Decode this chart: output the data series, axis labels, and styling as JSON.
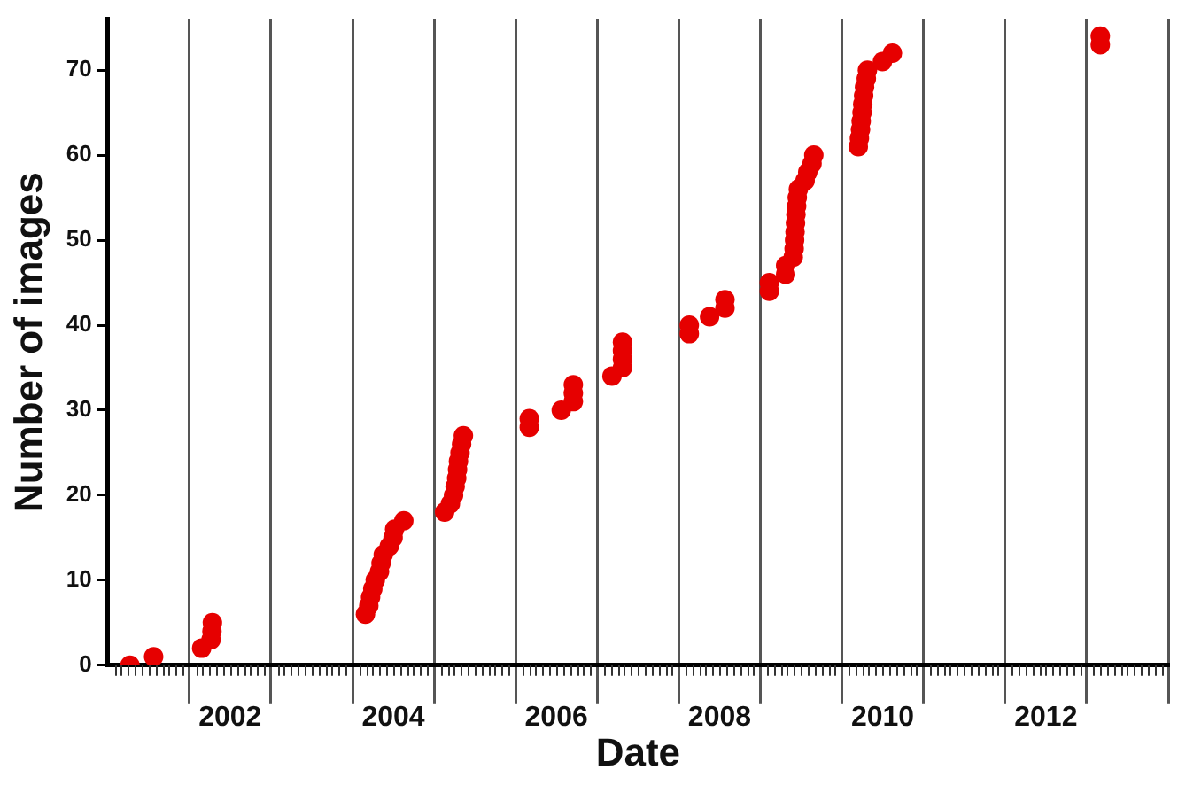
{
  "chart_data": {
    "type": "scatter",
    "xlabel": "Date",
    "ylabel": "Number of images",
    "x": [
      "2001-04-10",
      "2001-07-25",
      "2002-02-25",
      "2002-04-08",
      "2002-04-12",
      "2002-04-14",
      "2004-02-28",
      "2004-03-14",
      "2004-03-22",
      "2004-04-01",
      "2004-04-12",
      "2004-05-01",
      "2004-05-08",
      "2004-05-18",
      "2004-06-14",
      "2004-07-01",
      "2004-07-08",
      "2004-08-18",
      "2005-02-17",
      "2005-03-15",
      "2005-03-29",
      "2005-04-05",
      "2005-04-12",
      "2005-04-16",
      "2005-04-20",
      "2005-04-27",
      "2005-05-04",
      "2005-05-12",
      "2006-03-03",
      "2006-03-03",
      "2006-07-24",
      "2006-09-16",
      "2006-09-16",
      "2006-09-16",
      "2007-03-08",
      "2007-04-24",
      "2007-04-24",
      "2007-04-24",
      "2007-04-24",
      "2008-02-17",
      "2008-02-17",
      "2008-05-18",
      "2008-07-26",
      "2008-07-26",
      "2009-02-10",
      "2009-02-10",
      "2009-04-24",
      "2009-04-24",
      "2009-05-28",
      "2009-06-01",
      "2009-06-03",
      "2009-06-05",
      "2009-06-07",
      "2009-06-09",
      "2009-06-12",
      "2009-06-15",
      "2009-06-20",
      "2009-07-20",
      "2009-08-01",
      "2009-08-20",
      "2009-08-28",
      "2010-03-15",
      "2010-03-20",
      "2010-03-25",
      "2010-03-28",
      "2010-04-01",
      "2010-04-04",
      "2010-04-08",
      "2010-04-12",
      "2010-04-20",
      "2010-04-25",
      "2010-07-01",
      "2010-08-15",
      "2013-03-03",
      "2013-03-03"
    ],
    "values": [
      0,
      1,
      2,
      3,
      4,
      5,
      6,
      7,
      8,
      9,
      10,
      11,
      12,
      13,
      14,
      15,
      16,
      17,
      18,
      19,
      20,
      21,
      22,
      23,
      24,
      25,
      26,
      27,
      28,
      29,
      30,
      31,
      32,
      33,
      34,
      35,
      36,
      37,
      38,
      39,
      40,
      41,
      42,
      43,
      44,
      45,
      46,
      47,
      48,
      49,
      50,
      51,
      52,
      53,
      54,
      55,
      56,
      57,
      58,
      59,
      60,
      61,
      62,
      63,
      64,
      65,
      66,
      67,
      68,
      69,
      70,
      71,
      72,
      73,
      74
    ],
    "color": "#e60000",
    "marker": "circle",
    "xlim": [
      "2001-01-01",
      "2014-01-01"
    ],
    "xticks": [
      {
        "value": "2002-01-01",
        "label": null
      },
      {
        "value": "2002-07-02",
        "label": "2002"
      },
      {
        "value": "2003-01-01",
        "label": null
      },
      {
        "value": "2004-01-01",
        "label": null
      },
      {
        "value": "2004-07-02",
        "label": "2004"
      },
      {
        "value": "2005-01-01",
        "label": null
      },
      {
        "value": "2006-01-01",
        "label": null
      },
      {
        "value": "2006-07-02",
        "label": "2006"
      },
      {
        "value": "2007-01-01",
        "label": null
      },
      {
        "value": "2008-01-01",
        "label": null
      },
      {
        "value": "2008-07-02",
        "label": "2008"
      },
      {
        "value": "2009-01-01",
        "label": null
      },
      {
        "value": "2010-01-01",
        "label": null
      },
      {
        "value": "2010-07-02",
        "label": "2010"
      },
      {
        "value": "2011-01-01",
        "label": null
      },
      {
        "value": "2012-01-01",
        "label": null
      },
      {
        "value": "2012-07-02",
        "label": "2012"
      },
      {
        "value": "2013-01-01",
        "label": null
      },
      {
        "value": "2014-01-01",
        "label": null
      }
    ],
    "ylim": [
      0,
      76
    ],
    "yticks": [
      0,
      10,
      20,
      30,
      40,
      50,
      60,
      70
    ],
    "grid": "x",
    "legend": false
  }
}
